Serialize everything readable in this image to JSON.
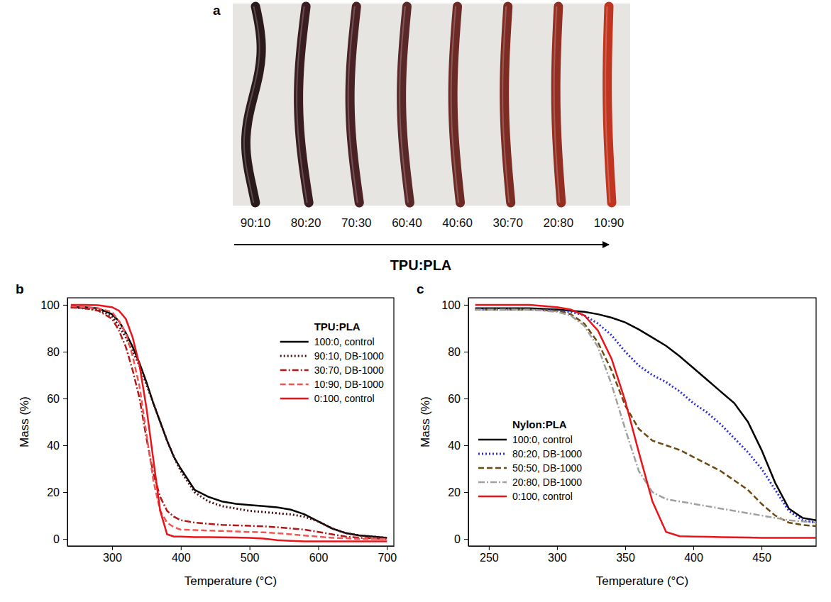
{
  "photo": {
    "panel_label": "a",
    "samples": [
      "90:10",
      "80:20",
      "70:30",
      "60:40",
      "40:60",
      "30:70",
      "20:80",
      "10:90"
    ],
    "colors": [
      "#2a1a1c",
      "#3a1d20",
      "#4a2226",
      "#5a2828",
      "#6c2a26",
      "#7d2c24",
      "#932f22",
      "#c0351f"
    ],
    "axis_label": "TPU:PLA"
  },
  "chart_data": [
    {
      "type": "line",
      "panel_label": "b",
      "x_label": "Temperature (°C)",
      "y_label": "Mass (%)",
      "legend_title": "TPU:PLA",
      "legend": "upper right",
      "xlim": [
        235,
        710
      ],
      "ylim": [
        -3,
        103
      ],
      "xticks": [
        300,
        400,
        500,
        600,
        700
      ],
      "yticks": [
        0,
        20,
        40,
        60,
        80,
        100
      ],
      "x": [
        240,
        260,
        280,
        300,
        310,
        320,
        330,
        340,
        350,
        360,
        370,
        380,
        390,
        400,
        420,
        440,
        460,
        480,
        500,
        520,
        540,
        560,
        580,
        600,
        620,
        640,
        660,
        680,
        700
      ],
      "series": [
        {
          "name": "100:0, control",
          "color": "#000000",
          "line_style": "solid",
          "values": [
            99,
            99,
            98.5,
            96,
            93,
            88,
            82,
            75,
            67,
            58,
            50,
            42,
            35,
            30,
            21,
            18,
            16,
            15,
            14.5,
            14,
            13.5,
            12.5,
            10.5,
            7.5,
            4.5,
            2.5,
            1.5,
            1,
            0.5
          ]
        },
        {
          "name": "90:10, DB-1000",
          "color": "#4a0f12",
          "line_style": "dotted",
          "values": [
            99,
            98.5,
            98,
            95,
            91,
            86,
            80,
            74,
            66,
            58,
            50,
            42,
            35,
            29,
            20,
            16,
            14,
            13,
            12,
            11.5,
            11,
            10.5,
            9.5,
            7.5,
            4.5,
            2.5,
            1.5,
            1,
            0.5
          ]
        },
        {
          "name": "30:70, DB-1000",
          "color": "#b01818",
          "line_style": "dashdot",
          "values": [
            99,
            98.5,
            97.5,
            94,
            89,
            82,
            72,
            60,
            43,
            28,
            18,
            12,
            9.5,
            8,
            7,
            6.5,
            6,
            5.8,
            5.6,
            5.4,
            5,
            4.5,
            4,
            3,
            2,
            1,
            0.5,
            0.2,
            0
          ]
        },
        {
          "name": "10:90, DB-1000",
          "color": "#f05555",
          "line_style": "dashed",
          "values": [
            99.5,
            99,
            98.5,
            97,
            93,
            88,
            78,
            65,
            45,
            25,
            12,
            7,
            5,
            4,
            3.8,
            3.6,
            3.4,
            3.2,
            3,
            2.8,
            2.5,
            2,
            1.5,
            1,
            0.5,
            0.3,
            0,
            0,
            0
          ]
        },
        {
          "name": "0:100, control",
          "color": "#e8141a",
          "line_style": "solid",
          "values": [
            100,
            100,
            99.8,
            99,
            97.5,
            94,
            86,
            74,
            56,
            34,
            12,
            2,
            1,
            1,
            0.8,
            0.8,
            0.7,
            0.6,
            0.5,
            0.2,
            -0.5,
            -0.8,
            -1,
            -1,
            -1,
            -1,
            -1,
            -1,
            -1
          ]
        }
      ]
    },
    {
      "type": "line",
      "panel_label": "c",
      "x_label": "Temperature (°C)",
      "y_label": "Mass (%)",
      "legend_title": "Nylon:PLA",
      "legend": "lower left",
      "xlim": [
        235,
        490
      ],
      "ylim": [
        -3,
        103
      ],
      "xticks": [
        250,
        300,
        350,
        400,
        450
      ],
      "yticks": [
        0,
        20,
        40,
        60,
        80,
        100
      ],
      "x": [
        240,
        260,
        280,
        300,
        310,
        320,
        330,
        340,
        350,
        360,
        370,
        380,
        390,
        400,
        410,
        420,
        430,
        440,
        450,
        460,
        470,
        480,
        490
      ],
      "series": [
        {
          "name": "100:0, control",
          "color": "#000000",
          "line_style": "solid",
          "values": [
            98.5,
            98.5,
            98.5,
            98,
            97.5,
            97,
            96,
            94.5,
            92.5,
            89.5,
            86,
            82.5,
            78,
            73,
            68,
            63,
            58,
            50,
            38,
            24,
            13,
            9,
            8
          ]
        },
        {
          "name": "80:20, DB-1000",
          "color": "#2a2ae0",
          "line_style": "dotted",
          "values": [
            98,
            98,
            98,
            97.5,
            97,
            95.5,
            92,
            87,
            80,
            74,
            70,
            67,
            63,
            58,
            54,
            49,
            43,
            37,
            30,
            21,
            12,
            8,
            7
          ]
        },
        {
          "name": "50:50, DB-1000",
          "color": "#6b4a12",
          "line_style": "dashed",
          "values": [
            98,
            98,
            98,
            97.5,
            96,
            92,
            84,
            72,
            57,
            47,
            42,
            40,
            38,
            35,
            32,
            29,
            25,
            21,
            15,
            10,
            7,
            6,
            5.5
          ]
        },
        {
          "name": "20:80, DB-1000",
          "color": "#a0a0a0",
          "line_style": "dashdot",
          "values": [
            98,
            98,
            98,
            97,
            95.5,
            91,
            82,
            66,
            47,
            29,
            20,
            17,
            16,
            15,
            14,
            13,
            12,
            11,
            10,
            9,
            8,
            7.5,
            7
          ]
        },
        {
          "name": "0:100, control",
          "color": "#e8141a",
          "line_style": "solid",
          "values": [
            100,
            100,
            100,
            99,
            98,
            95.5,
            89,
            77,
            59,
            37,
            16,
            3,
            1.2,
            1,
            0.9,
            0.8,
            0.7,
            0.6,
            0.5,
            0.5,
            0.5,
            0.5,
            0.5
          ]
        }
      ]
    }
  ]
}
